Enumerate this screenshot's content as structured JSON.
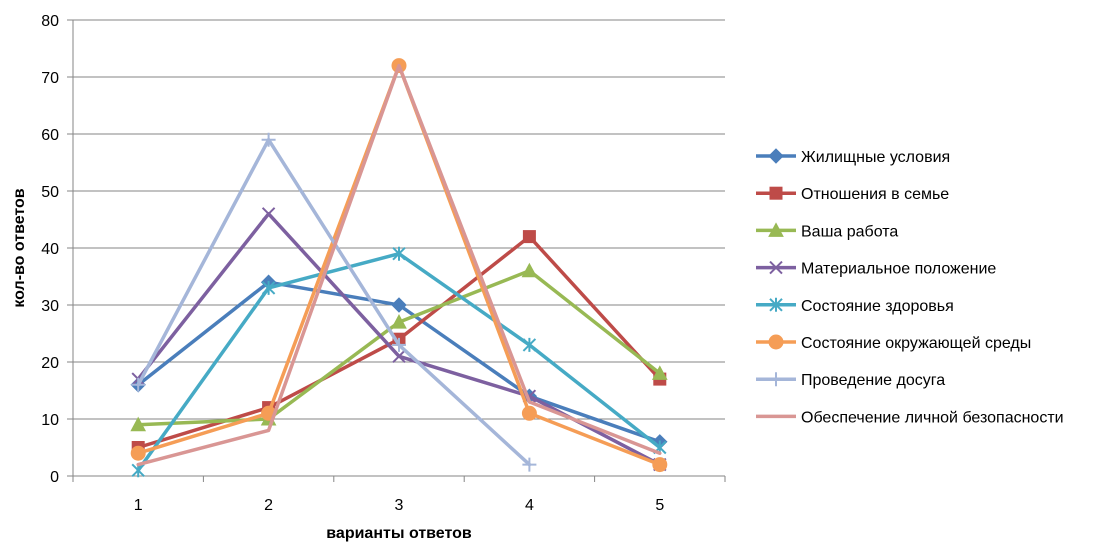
{
  "chart_data": {
    "type": "line",
    "xlabel": "варианты ответов",
    "ylabel": "кол-во ответов",
    "x": [
      1,
      2,
      3,
      4,
      5
    ],
    "ylim": [
      0,
      80
    ],
    "yticks": [
      0,
      10,
      20,
      30,
      40,
      50,
      60,
      70,
      80
    ],
    "grid": "horizontal",
    "legend": "right",
    "series": [
      {
        "name": "Жилищные условия",
        "values": [
          16,
          34,
          30,
          14,
          6
        ],
        "color": "#4A7EBB",
        "marker": "diamond"
      },
      {
        "name": "Отношения в семье",
        "values": [
          5,
          12,
          24,
          42,
          17
        ],
        "color": "#BE4B48",
        "marker": "square"
      },
      {
        "name": "Ваша работа",
        "values": [
          9,
          10,
          27,
          36,
          18
        ],
        "color": "#98B954",
        "marker": "triangle"
      },
      {
        "name": "Материальное положение",
        "values": [
          17,
          46,
          21,
          14,
          2
        ],
        "color": "#7D60A0",
        "marker": "x"
      },
      {
        "name": "Состояние здоровья",
        "values": [
          1,
          33,
          39,
          23,
          5
        ],
        "color": "#46AAC5",
        "marker": "star"
      },
      {
        "name": "Состояние окружающей среды",
        "values": [
          4,
          11,
          72,
          11,
          2
        ],
        "color": "#F59D56",
        "marker": "circle"
      },
      {
        "name": "Проведение досуга",
        "values": [
          16,
          59,
          23,
          2,
          null
        ],
        "color": "#A5B6D9",
        "marker": "plus"
      },
      {
        "name": "Обеспечение личной безопасности",
        "values": [
          2,
          8,
          72,
          13,
          4
        ],
        "color": "#D99694",
        "marker": "none"
      }
    ]
  }
}
